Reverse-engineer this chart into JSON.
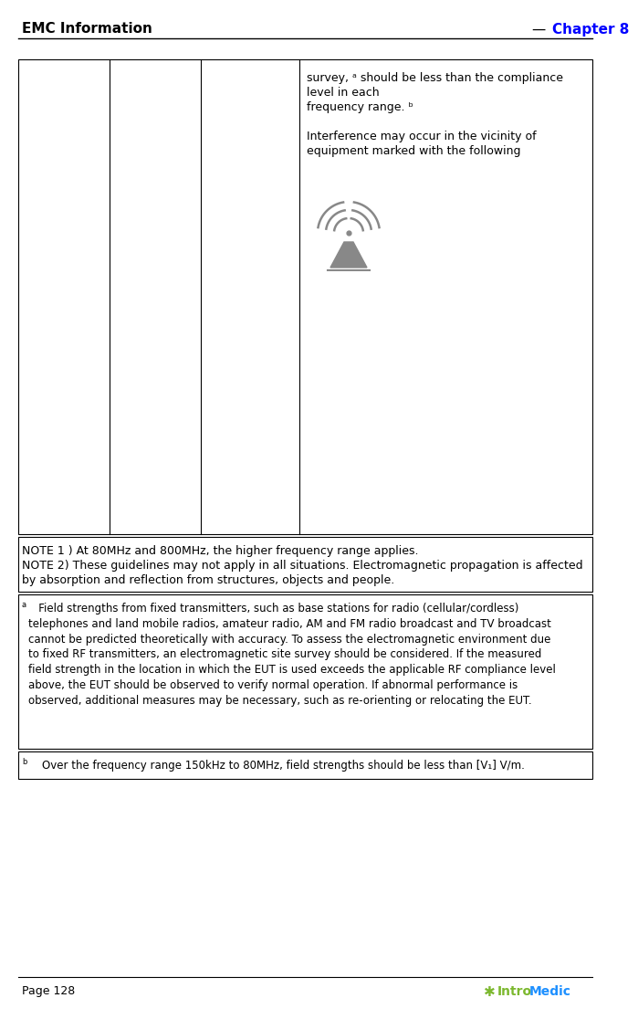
{
  "header_left": "EMC Information",
  "header_right": "Chapter 8",
  "header_right_color": "#0000FF",
  "page_footer": "Page 128",
  "bg_color": "#FFFFFF",
  "table_cell4_text_lines": [
    "survey, ᵃ should be less than the compliance",
    "level in each",
    "frequency range. ᵇ",
    "",
    "Interference may occur in the vicinity of",
    "equipment marked with the following"
  ],
  "note1": "NOTE 1 ) At 80MHz and 800MHz, the higher frequency range applies.",
  "note2": "NOTE 2) These guidelines may not apply in all situations. Electromagnetic propagation is affected",
  "note2b": "by absorption and reflection from structures, objects and people.",
  "footnote_a_text": "   Field strengths from fixed transmitters, such as base stations for radio (cellular/cordless)\ntelephones and land mobile radios, amateur radio, AM and FM radio broadcast and TV broadcast\ncannot be predicted theoretically with accuracy. To assess the electromagnetic environment due\nto fixed RF transmitters, an electromagnetic site survey should be considered. If the measured\nfield strength in the location in which the EUT is used exceeds the applicable RF compliance level\nabove, the EUT should be observed to verify normal operation. If abnormal performance is\nobserved, additional measures may be necessary, such as re-orienting or relocating the EUT.",
  "footnote_b_text": "    Over the frequency range 150kHz to 80MHz, field strengths should be less than [V₁] V/m.",
  "icon_color": "#888888",
  "table_border_color": "#000000",
  "font_size_header": 11,
  "font_size_body": 9,
  "font_size_notes": 9,
  "font_size_footnote": 8.5,
  "intromedic_green": "#7CB82F",
  "intromedic_blue": "#1E90FF"
}
